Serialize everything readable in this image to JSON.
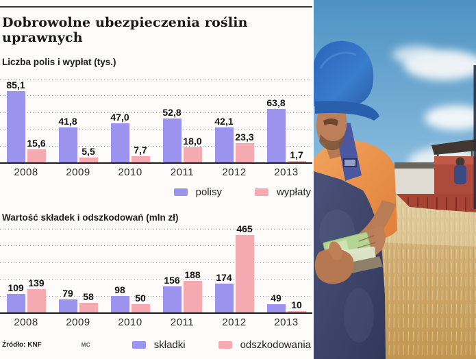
{
  "header": {
    "title": "Dobrowolne ubezpieczenia roślin uprawnych"
  },
  "source": {
    "label": "Źródło: KNF",
    "credit": "MC"
  },
  "colors": {
    "bar_purple": "#9b93ee",
    "bar_pink": "#f5aab1",
    "axis": "#1c1c1c",
    "gridline": "#8f8f8f",
    "sky": "#4e92c3",
    "wheat": "#d2b075",
    "combine_red": "#ad4a3c",
    "overalls_navy": "#3c4566",
    "shirt_orange": "#ef9a50",
    "cap_blue": "#2f6fc4",
    "money_green": "#b5d494"
  },
  "chart_data": [
    {
      "type": "bar",
      "title": "Liczba polis i wypłat (tys.)",
      "categories": [
        "2008",
        "2009",
        "2010",
        "2011",
        "2012",
        "2013"
      ],
      "series": [
        {
          "name": "polisy",
          "color": "#9b93ee",
          "values": [
            85.1,
            41.8,
            47.0,
            52.8,
            42.1,
            63.8
          ],
          "labels": [
            "85,1",
            "41,8",
            "47,0",
            "52,8",
            "42,1",
            "63,8"
          ]
        },
        {
          "name": "wypłaty",
          "color": "#f5aab1",
          "values": [
            15.6,
            5.5,
            7.7,
            18.0,
            23.3,
            1.7
          ],
          "labels": [
            "15,6",
            "5,5",
            "7,7",
            "18,0",
            "23,3",
            "1,7"
          ]
        }
      ],
      "xlabel": "",
      "ylabel": "",
      "ylim": [
        0,
        100
      ],
      "grid_step": 20,
      "grid": "dotted-horizontal",
      "legend_position": "bottom-right"
    },
    {
      "type": "bar",
      "title": "Wartość składek i odszkodowań (mln zł)",
      "categories": [
        "2008",
        "2009",
        "2010",
        "2011",
        "2012",
        "2013"
      ],
      "series": [
        {
          "name": "składki",
          "color": "#9b93ee",
          "values": [
            109,
            79,
            98,
            156,
            174,
            49
          ],
          "labels": [
            "109",
            "79",
            "98",
            "156",
            "174",
            "49"
          ]
        },
        {
          "name": "odszkodowania",
          "color": "#f5aab1",
          "values": [
            139,
            58,
            50,
            188,
            465,
            10
          ],
          "labels": [
            "139",
            "58",
            "50",
            "188",
            "465",
            "10"
          ]
        }
      ],
      "xlabel": "",
      "ylabel": "",
      "ylim": [
        0,
        500
      ],
      "grid_step": 100,
      "grid": "dotted-horizontal",
      "legend_position": "bottom-right"
    }
  ]
}
